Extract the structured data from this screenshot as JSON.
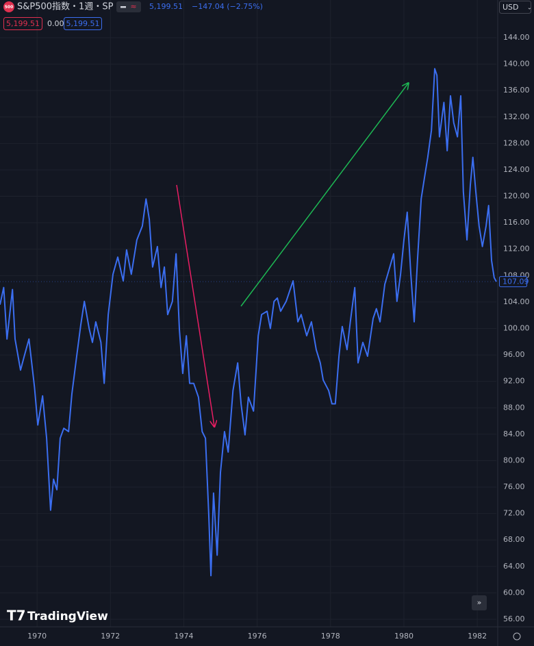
{
  "header": {
    "logo": "500",
    "symbol": "S&P500指数・1週・SP",
    "price": "5,199.51",
    "change": "−147.04 (−2.75%)",
    "sell": "5,199.51",
    "spread": "0.00",
    "buy": "5,199.51",
    "currency": "USD",
    "brand": "TradingView"
  },
  "chart_data": {
    "type": "line",
    "color": "#3b6ef0",
    "grid": true,
    "x": [
      1968.99,
      1969.09,
      1969.18,
      1969.33,
      1969.4,
      1969.55,
      1969.65,
      1969.78,
      1969.93,
      1970.02,
      1970.15,
      1970.26,
      1970.37,
      1970.45,
      1970.54,
      1970.63,
      1970.73,
      1970.86,
      1970.95,
      1971.08,
      1971.19,
      1971.29,
      1971.42,
      1971.51,
      1971.6,
      1971.74,
      1971.83,
      1971.94,
      1972.07,
      1972.2,
      1972.35,
      1972.44,
      1972.57,
      1972.72,
      1972.87,
      1972.97,
      1973.06,
      1973.15,
      1973.28,
      1973.38,
      1973.47,
      1973.56,
      1973.69,
      1973.79,
      1973.88,
      1973.97,
      1974.07,
      1974.16,
      1974.27,
      1974.4,
      1974.5,
      1974.59,
      1974.68,
      1974.74,
      1974.81,
      1974.91,
      1975.0,
      1975.11,
      1975.21,
      1975.34,
      1975.47,
      1975.56,
      1975.67,
      1975.76,
      1975.9,
      1976.03,
      1976.12,
      1976.27,
      1976.36,
      1976.46,
      1976.55,
      1976.64,
      1976.79,
      1976.98,
      1977.11,
      1977.2,
      1977.35,
      1977.48,
      1977.61,
      1977.72,
      1977.8,
      1977.95,
      1978.04,
      1978.13,
      1978.23,
      1978.32,
      1978.45,
      1978.54,
      1978.66,
      1978.75,
      1978.88,
      1979.01,
      1979.16,
      1979.25,
      1979.35,
      1979.48,
      1979.59,
      1979.72,
      1979.81,
      1979.91,
      1980.0,
      1980.09,
      1980.19,
      1980.28,
      1980.37,
      1980.47,
      1980.56,
      1980.65,
      1980.75,
      1980.84,
      1980.9,
      1980.97,
      1981.09,
      1981.18,
      1981.27,
      1981.36,
      1981.46,
      1981.55,
      1981.62,
      1981.72,
      1981.81,
      1981.88,
      1981.96,
      1982.05,
      1982.14,
      1982.24,
      1982.31,
      1982.39,
      1982.46,
      1982.52
    ],
    "values": [
      103.6,
      106.2,
      98.4,
      105.9,
      98.4,
      93.7,
      95.8,
      98.4,
      91.1,
      85.4,
      89.8,
      83.4,
      72.5,
      77.2,
      75.6,
      83.4,
      84.9,
      84.4,
      90.1,
      95.8,
      100.5,
      104.1,
      100,
      97.9,
      101,
      97.9,
      91.7,
      102.1,
      108.2,
      110.8,
      107.2,
      111.9,
      108.2,
      113.4,
      115.5,
      119.6,
      116.5,
      109.3,
      112.4,
      106.2,
      109.3,
      102.1,
      104.1,
      111.3,
      99.9,
      93.2,
      98.9,
      91.7,
      91.7,
      89.6,
      84.4,
      83.4,
      71.9,
      62.6,
      75.1,
      65.7,
      78.2,
      84.4,
      81.3,
      90.6,
      94.8,
      88.6,
      83.9,
      89.6,
      87.5,
      98.9,
      102.1,
      102.6,
      100,
      104.1,
      104.6,
      102.6,
      104.1,
      107.2,
      101,
      102.1,
      98.9,
      101,
      96.8,
      94.8,
      92.2,
      90.6,
      88.6,
      88.6,
      95.8,
      100.3,
      96.8,
      101,
      106.2,
      94.8,
      97.9,
      95.8,
      101.5,
      103,
      101,
      106.7,
      108.8,
      111.3,
      104.1,
      108.2,
      113.4,
      117.6,
      108.2,
      101,
      110.3,
      119.6,
      122.8,
      125.9,
      130,
      139.3,
      138.3,
      129,
      134.2,
      126.9,
      135.2,
      131.1,
      129,
      135.2,
      120.7,
      113.4,
      121.7,
      125.9,
      120.7,
      115.5,
      112.4,
      115.5,
      118.6,
      110.3,
      107.7,
      107.09
    ],
    "last_price": {
      "value": 107.09,
      "label": "107.09"
    },
    "xlim": [
      1968.99,
      1982.52
    ],
    "xticks": [
      1970,
      1972,
      1974,
      1976,
      1978,
      1980,
      1982
    ],
    "ylim": [
      54.86,
      149.7
    ],
    "yticks": [
      {
        "value": 56,
        "label": "56.00"
      },
      {
        "value": 60,
        "label": "60.00"
      },
      {
        "value": 64,
        "label": "64.00"
      },
      {
        "value": 68,
        "label": "68.00"
      },
      {
        "value": 72,
        "label": "72.00"
      },
      {
        "value": 76,
        "label": "76.00"
      },
      {
        "value": 80,
        "label": "80.00"
      },
      {
        "value": 84,
        "label": "84.00"
      },
      {
        "value": 88,
        "label": "88.00"
      },
      {
        "value": 92,
        "label": "92.00"
      },
      {
        "value": 96,
        "label": "96.00"
      },
      {
        "value": 100,
        "label": "100.00"
      },
      {
        "value": 104,
        "label": "104.00"
      },
      {
        "value": 108,
        "label": "108.00"
      },
      {
        "value": 112,
        "label": "112.00"
      },
      {
        "value": 116,
        "label": "116.00"
      },
      {
        "value": 120,
        "label": "120.00"
      },
      {
        "value": 124,
        "label": "124.00"
      },
      {
        "value": 128,
        "label": "128.00"
      },
      {
        "value": 132,
        "label": "132.00"
      },
      {
        "value": 136,
        "label": "136.00"
      },
      {
        "value": 140,
        "label": "140.00"
      },
      {
        "value": 144,
        "label": "144.00"
      }
    ]
  }
}
